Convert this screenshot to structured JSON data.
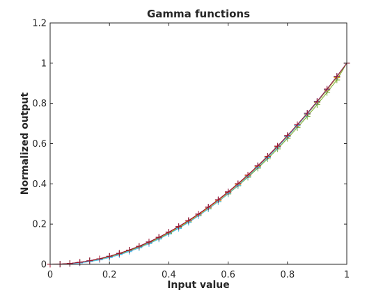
{
  "chart_data": {
    "type": "line",
    "title": "Gamma functions",
    "xlabel": "Input value",
    "ylabel": "Normalized output",
    "xlim": [
      0,
      1
    ],
    "ylim": [
      0,
      1.2
    ],
    "xticks": [
      0,
      0.2,
      0.4,
      0.6,
      0.8,
      1
    ],
    "xtick_labels": [
      "0",
      "0.2",
      "0.4",
      "0.6",
      "0.8",
      "1"
    ],
    "yticks": [
      0,
      0.2,
      0.4,
      0.6,
      0.8,
      1,
      1.2
    ],
    "ytick_labels": [
      "0",
      "0.2",
      "0.4",
      "0.6",
      "0.8",
      "1",
      "1.2"
    ],
    "grid": false,
    "box": true,
    "marker": "+",
    "x": [
      0,
      0.0333,
      0.0667,
      0.1,
      0.1333,
      0.1667,
      0.2,
      0.2333,
      0.2667,
      0.3,
      0.3333,
      0.3667,
      0.4,
      0.4333,
      0.4667,
      0.5,
      0.5333,
      0.5667,
      0.6,
      0.6333,
      0.6667,
      0.7,
      0.7333,
      0.7667,
      0.8,
      0.8333,
      0.8667,
      0.9,
      0.9333,
      0.9667,
      1
    ],
    "series": [
      {
        "color": "#0072BD",
        "values": [
          0,
          0.0011,
          0.0044,
          0.01,
          0.0178,
          0.0278,
          0.04,
          0.0544,
          0.0711,
          0.09,
          0.1111,
          0.1344,
          0.16,
          0.1878,
          0.2178,
          0.25,
          0.2844,
          0.3211,
          0.36,
          0.4011,
          0.4444,
          0.49,
          0.5378,
          0.5878,
          0.64,
          0.6944,
          0.7511,
          0.81,
          0.8711,
          0.9344,
          1
        ]
      },
      {
        "color": "#D95319",
        "values": [
          0,
          0.0011,
          0.0044,
          0.01,
          0.0177,
          0.0276,
          0.0397,
          0.054,
          0.0706,
          0.0894,
          0.1103,
          0.1335,
          0.1589,
          0.1866,
          0.2164,
          0.2484,
          0.2827,
          0.3192,
          0.3579,
          0.3988,
          0.442,
          0.4874,
          0.535,
          0.5848,
          0.6369,
          0.6912,
          0.7478,
          0.8066,
          0.8676,
          0.9309,
          1
        ]
      },
      {
        "color": "#EDB120",
        "values": [
          0,
          0.0007,
          0.0035,
          0.0086,
          0.0158,
          0.0253,
          0.0371,
          0.0511,
          0.0673,
          0.0859,
          0.1067,
          0.1297,
          0.155,
          0.1825,
          0.2123,
          0.2444,
          0.2786,
          0.3152,
          0.354,
          0.395,
          0.4382,
          0.4837,
          0.5315,
          0.5815,
          0.6337,
          0.6882,
          0.7449,
          0.8039,
          0.865,
          0.9285,
          1
        ]
      },
      {
        "color": "#7E2F8E",
        "values": [
          0,
          0.0011,
          0.0044,
          0.01,
          0.0178,
          0.0278,
          0.04,
          0.0544,
          0.0711,
          0.09,
          0.1111,
          0.1344,
          0.16,
          0.1878,
          0.2178,
          0.25,
          0.2844,
          0.3211,
          0.36,
          0.4011,
          0.4444,
          0.49,
          0.5378,
          0.5878,
          0.64,
          0.6944,
          0.7511,
          0.81,
          0.8711,
          0.9344,
          1
        ]
      },
      {
        "color": "#77AC30",
        "values": [
          0,
          0.0008,
          0.0038,
          0.0089,
          0.0162,
          0.0257,
          0.0374,
          0.0513,
          0.0674,
          0.0857,
          0.1062,
          0.1289,
          0.1538,
          0.1809,
          0.2102,
          0.2418,
          0.2756,
          0.3116,
          0.3498,
          0.3902,
          0.4328,
          0.4777,
          0.5248,
          0.5741,
          0.6256,
          0.6793,
          0.7353,
          0.7935,
          0.8539,
          0.9166,
          1
        ]
      },
      {
        "color": "#4DBEEE",
        "values": [
          0,
          0.0004,
          0.0025,
          0.0067,
          0.0133,
          0.0222,
          0.0335,
          0.0472,
          0.0632,
          0.0816,
          0.1023,
          0.1253,
          0.1506,
          0.1783,
          0.2083,
          0.2406,
          0.2752,
          0.3121,
          0.3513,
          0.3927,
          0.4365,
          0.4826,
          0.5309,
          0.5815,
          0.6344,
          0.6895,
          0.7469,
          0.8066,
          0.8685,
          0.9327,
          1
        ]
      },
      {
        "color": "#A2142F",
        "values": [
          0,
          0.0011,
          0.0044,
          0.01,
          0.0178,
          0.0278,
          0.04,
          0.0544,
          0.0711,
          0.09,
          0.1111,
          0.1344,
          0.16,
          0.1878,
          0.2178,
          0.25,
          0.2844,
          0.3211,
          0.36,
          0.4011,
          0.4444,
          0.49,
          0.5378,
          0.5878,
          0.64,
          0.6944,
          0.7511,
          0.81,
          0.8711,
          0.9344,
          1
        ]
      }
    ]
  }
}
